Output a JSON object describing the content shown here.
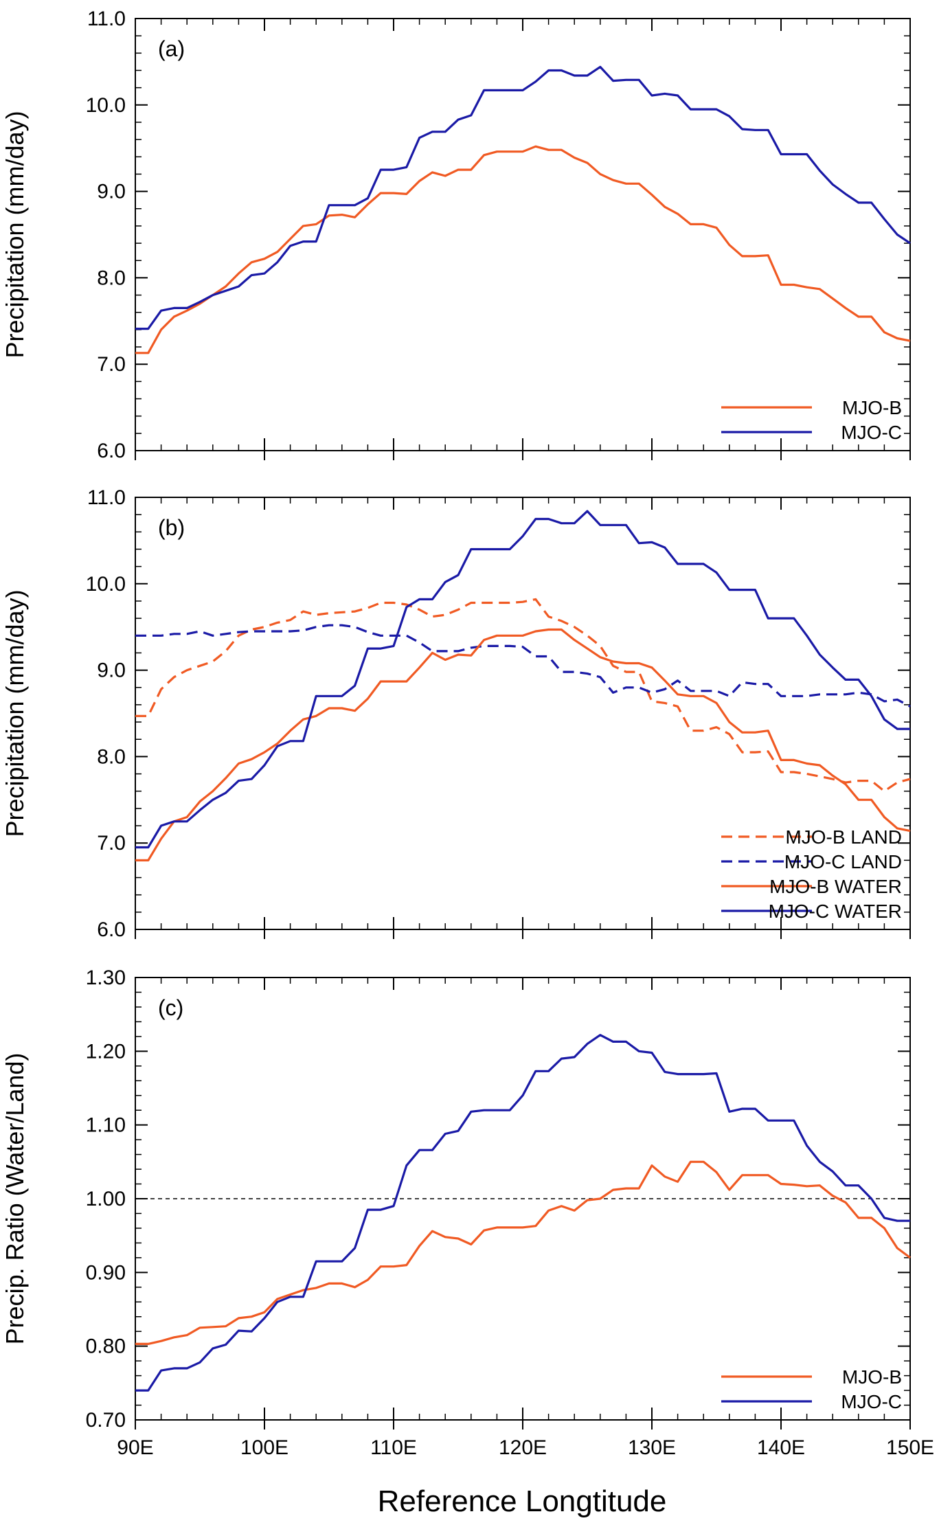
{
  "figure": {
    "xlabel": "Reference Longtitude",
    "x_tick_labels": [
      "90E",
      "100E",
      "110E",
      "120E",
      "130E",
      "140E",
      "150E"
    ]
  },
  "colors": {
    "orange": "#f05a23",
    "blue": "#1a1aa6"
  },
  "chart_data": [
    {
      "type": "line",
      "panel_label": "(a)",
      "ylabel": "Precipitation (mm/day)",
      "xlim": [
        90,
        150
      ],
      "ylim": [
        6.0,
        11.0
      ],
      "yticks": [
        "6.0",
        "7.0",
        "8.0",
        "9.0",
        "10.0",
        "11.0"
      ],
      "legend_position": "bottom-right",
      "x_start": 90,
      "x_step": 1,
      "series": [
        {
          "name": "MJO-B",
          "color": "#f05a23",
          "dash": "solid",
          "values": [
            7.13,
            7.13,
            7.4,
            7.55,
            7.62,
            7.7,
            7.8,
            7.9,
            8.05,
            8.18,
            8.22,
            8.3,
            8.45,
            8.6,
            8.62,
            8.72,
            8.73,
            8.7,
            8.85,
            8.98,
            8.98,
            8.97,
            9.12,
            9.22,
            9.18,
            9.25,
            9.25,
            9.42,
            9.46,
            9.46,
            9.46,
            9.52,
            9.48,
            9.48,
            9.39,
            9.33,
            9.2,
            9.13,
            9.09,
            9.09,
            8.96,
            8.82,
            8.74,
            8.62,
            8.62,
            8.58,
            8.38,
            8.25,
            8.25,
            8.26,
            7.92,
            7.92,
            7.89,
            7.87,
            7.76,
            7.65,
            7.55,
            7.55,
            7.37,
            7.3,
            7.27
          ]
        },
        {
          "name": "MJO-C",
          "color": "#1a1aa6",
          "dash": "solid",
          "values": [
            7.41,
            7.41,
            7.62,
            7.65,
            7.65,
            7.72,
            7.8,
            7.85,
            7.9,
            8.03,
            8.05,
            8.18,
            8.37,
            8.42,
            8.42,
            8.84,
            8.84,
            8.84,
            8.92,
            9.25,
            9.25,
            9.28,
            9.62,
            9.69,
            9.69,
            9.83,
            9.88,
            10.17,
            10.17,
            10.17,
            10.17,
            10.27,
            10.4,
            10.4,
            10.34,
            10.34,
            10.44,
            10.28,
            10.29,
            10.29,
            10.11,
            10.13,
            10.11,
            9.95,
            9.95,
            9.95,
            9.87,
            9.72,
            9.71,
            9.71,
            9.43,
            9.43,
            9.43,
            9.24,
            9.08,
            8.97,
            8.87,
            8.87,
            8.68,
            8.5,
            8.4
          ]
        }
      ]
    },
    {
      "type": "line",
      "panel_label": "(b)",
      "ylabel": "Precipitation (mm/day)",
      "xlim": [
        90,
        150
      ],
      "ylim": [
        6.0,
        11.0
      ],
      "yticks": [
        "6.0",
        "7.0",
        "8.0",
        "9.0",
        "10.0",
        "11.0"
      ],
      "legend_position": "bottom-right",
      "x_start": 90,
      "x_step": 1,
      "series": [
        {
          "name": "MJO-B LAND",
          "color": "#f05a23",
          "dash": "dashed",
          "values": [
            8.47,
            8.47,
            8.78,
            8.92,
            9.0,
            9.05,
            9.1,
            9.22,
            9.4,
            9.47,
            9.5,
            9.55,
            9.58,
            9.68,
            9.64,
            9.66,
            9.67,
            9.68,
            9.72,
            9.78,
            9.78,
            9.76,
            9.7,
            9.62,
            9.64,
            9.7,
            9.78,
            9.78,
            9.78,
            9.78,
            9.79,
            9.82,
            9.62,
            9.57,
            9.5,
            9.4,
            9.28,
            9.05,
            8.98,
            8.98,
            8.64,
            8.62,
            8.58,
            8.3,
            8.3,
            8.34,
            8.26,
            8.05,
            8.05,
            8.06,
            7.82,
            7.82,
            7.8,
            7.77,
            7.74,
            7.7,
            7.72,
            7.72,
            7.6,
            7.7,
            7.74
          ]
        },
        {
          "name": "MJO-C LAND",
          "color": "#1a1aa6",
          "dash": "dashed",
          "values": [
            9.4,
            9.4,
            9.4,
            9.42,
            9.42,
            9.45,
            9.4,
            9.42,
            9.44,
            9.45,
            9.45,
            9.45,
            9.45,
            9.46,
            9.5,
            9.52,
            9.52,
            9.5,
            9.44,
            9.4,
            9.4,
            9.4,
            9.32,
            9.22,
            9.22,
            9.22,
            9.26,
            9.28,
            9.28,
            9.28,
            9.27,
            9.16,
            9.16,
            8.98,
            8.98,
            8.96,
            8.92,
            8.74,
            8.8,
            8.8,
            8.74,
            8.78,
            8.88,
            8.76,
            8.76,
            8.76,
            8.7,
            8.86,
            8.84,
            8.84,
            8.7,
            8.7,
            8.7,
            8.72,
            8.72,
            8.72,
            8.74,
            8.72,
            8.64,
            8.66,
            8.58
          ]
        },
        {
          "name": "MJO-B WATER",
          "color": "#f05a23",
          "dash": "solid",
          "values": [
            6.8,
            6.8,
            7.05,
            7.25,
            7.3,
            7.48,
            7.6,
            7.75,
            7.92,
            7.97,
            8.05,
            8.15,
            8.3,
            8.43,
            8.47,
            8.56,
            8.56,
            8.53,
            8.67,
            8.87,
            8.87,
            8.87,
            9.03,
            9.2,
            9.12,
            9.18,
            9.17,
            9.35,
            9.4,
            9.4,
            9.4,
            9.45,
            9.47,
            9.47,
            9.35,
            9.25,
            9.15,
            9.1,
            9.08,
            9.08,
            9.03,
            8.88,
            8.72,
            8.7,
            8.7,
            8.62,
            8.4,
            8.28,
            8.28,
            8.3,
            7.96,
            7.96,
            7.92,
            7.9,
            7.78,
            7.68,
            7.5,
            7.5,
            7.3,
            7.17,
            7.14
          ]
        },
        {
          "name": "MJO-C WATER",
          "color": "#1a1aa6",
          "dash": "solid",
          "values": [
            6.95,
            6.95,
            7.2,
            7.25,
            7.25,
            7.38,
            7.5,
            7.58,
            7.72,
            7.74,
            7.9,
            8.12,
            8.18,
            8.18,
            8.7,
            8.7,
            8.7,
            8.82,
            9.25,
            9.25,
            9.28,
            9.73,
            9.82,
            9.82,
            10.02,
            10.1,
            10.4,
            10.4,
            10.4,
            10.4,
            10.55,
            10.75,
            10.75,
            10.7,
            10.7,
            10.84,
            10.68,
            10.68,
            10.68,
            10.47,
            10.48,
            10.42,
            10.23,
            10.23,
            10.23,
            10.13,
            9.93,
            9.93,
            9.93,
            9.6,
            9.6,
            9.6,
            9.4,
            9.18,
            9.03,
            8.89,
            8.89,
            8.7,
            8.43,
            8.32,
            8.32
          ]
        }
      ]
    },
    {
      "type": "line",
      "panel_label": "(c)",
      "ylabel": "Precip. Ratio (Water/Land)",
      "xlim": [
        90,
        150
      ],
      "ylim": [
        0.7,
        1.3
      ],
      "yticks": [
        "0.70",
        "0.80",
        "0.90",
        "1.00",
        "1.10",
        "1.20",
        "1.30"
      ],
      "reference_line": 1.0,
      "legend_position": "bottom-right",
      "x_start": 90,
      "x_step": 1,
      "series": [
        {
          "name": "MJO-B",
          "color": "#f05a23",
          "dash": "solid",
          "values": [
            0.803,
            0.803,
            0.807,
            0.812,
            0.815,
            0.825,
            0.826,
            0.827,
            0.838,
            0.84,
            0.846,
            0.864,
            0.87,
            0.876,
            0.879,
            0.885,
            0.885,
            0.88,
            0.89,
            0.908,
            0.908,
            0.91,
            0.936,
            0.956,
            0.948,
            0.946,
            0.938,
            0.957,
            0.961,
            0.961,
            0.961,
            0.963,
            0.984,
            0.99,
            0.984,
            0.998,
            1.0,
            1.012,
            1.014,
            1.014,
            1.045,
            1.03,
            1.023,
            1.05,
            1.05,
            1.036,
            1.012,
            1.032,
            1.032,
            1.032,
            1.02,
            1.019,
            1.017,
            1.018,
            1.004,
            0.995,
            0.974,
            0.974,
            0.96,
            0.933,
            0.92
          ]
        },
        {
          "name": "MJO-C",
          "color": "#1a1aa6",
          "dash": "solid",
          "values": [
            0.74,
            0.74,
            0.767,
            0.77,
            0.77,
            0.778,
            0.797,
            0.802,
            0.821,
            0.82,
            0.838,
            0.86,
            0.867,
            0.867,
            0.915,
            0.915,
            0.915,
            0.933,
            0.985,
            0.985,
            0.99,
            1.045,
            1.066,
            1.066,
            1.088,
            1.092,
            1.118,
            1.12,
            1.12,
            1.12,
            1.14,
            1.173,
            1.173,
            1.19,
            1.192,
            1.21,
            1.222,
            1.213,
            1.213,
            1.2,
            1.198,
            1.172,
            1.169,
            1.169,
            1.169,
            1.17,
            1.118,
            1.122,
            1.122,
            1.106,
            1.106,
            1.106,
            1.072,
            1.05,
            1.037,
            1.018,
            1.018,
            1.0,
            0.974,
            0.97,
            0.97
          ]
        }
      ]
    }
  ]
}
